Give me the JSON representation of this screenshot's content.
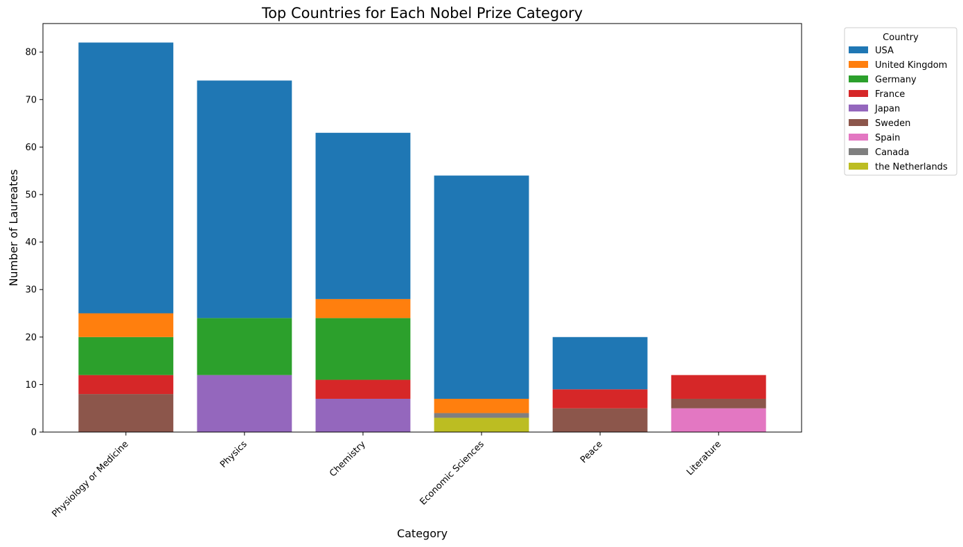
{
  "chart_data": {
    "type": "bar",
    "stacked": true,
    "title": "Top Countries for Each Nobel Prize Category",
    "xlabel": "Category",
    "ylabel": "Number of Laureates",
    "ylim": [
      0,
      86
    ],
    "yticks": [
      0,
      10,
      20,
      30,
      40,
      50,
      60,
      70,
      80
    ],
    "grid": false,
    "legend": {
      "title": "Country",
      "placement": "outside-top-right"
    },
    "categories": [
      "Physiology or Medicine",
      "Physics",
      "Chemistry",
      "Economic Sciences",
      "Peace",
      "Literature"
    ],
    "series": [
      {
        "name": "the Netherlands",
        "color": "#bcbd22",
        "values": [
          0,
          0,
          0,
          3,
          0,
          0
        ]
      },
      {
        "name": "Canada",
        "color": "#7f7f7f",
        "values": [
          0,
          0,
          0,
          1,
          0,
          0
        ]
      },
      {
        "name": "Spain",
        "color": "#e377c2",
        "values": [
          0,
          0,
          0,
          0,
          0,
          5
        ]
      },
      {
        "name": "Sweden",
        "color": "#8c564b",
        "values": [
          8,
          0,
          0,
          0,
          5,
          2
        ]
      },
      {
        "name": "Japan",
        "color": "#9467bd",
        "values": [
          0,
          12,
          7,
          0,
          0,
          0
        ]
      },
      {
        "name": "France",
        "color": "#d62728",
        "values": [
          4,
          0,
          4,
          0,
          4,
          5
        ]
      },
      {
        "name": "Germany",
        "color": "#2ca02c",
        "values": [
          8,
          12,
          13,
          0,
          0,
          0
        ]
      },
      {
        "name": "United Kingdom",
        "color": "#ff7f0e",
        "values": [
          5,
          0,
          4,
          3,
          0,
          0
        ]
      },
      {
        "name": "USA",
        "color": "#1f77b4",
        "values": [
          57,
          50,
          35,
          47,
          11,
          0
        ]
      }
    ],
    "legend_order": [
      "USA",
      "United Kingdom",
      "Germany",
      "France",
      "Japan",
      "Sweden",
      "Spain",
      "Canada",
      "the Netherlands"
    ]
  }
}
